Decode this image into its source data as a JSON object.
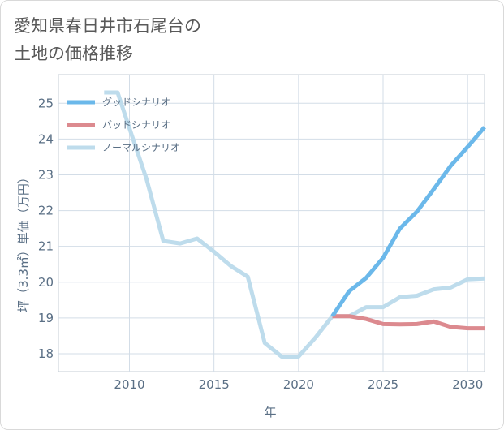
{
  "title": "愛知県春日井市石尾台の\n土地の価格推移",
  "chart_data": {
    "type": "line",
    "xlabel": "年",
    "ylabel": "坪（3.3㎡）単価（万円）",
    "xlim": [
      2005.8,
      2031
    ],
    "ylim": [
      17.5,
      25.8
    ],
    "xticks": [
      2010,
      2015,
      2020,
      2025,
      2030
    ],
    "yticks": [
      18,
      19,
      20,
      21,
      22,
      23,
      24,
      25
    ],
    "grid": true,
    "legend_position": "top-left",
    "series": [
      {
        "name": "グッドシナリオ",
        "color": "#6bb8ea",
        "x": [
          2022,
          2023,
          2024,
          2025,
          2026,
          2027,
          2028,
          2029,
          2030,
          2031
        ],
        "y": [
          19.05,
          19.75,
          20.12,
          20.68,
          21.5,
          21.97,
          22.6,
          23.25,
          23.78,
          24.33
        ]
      },
      {
        "name": "バッドシナリオ",
        "color": "#dc8a8f",
        "x": [
          2022,
          2023,
          2024,
          2025,
          2026,
          2027,
          2028,
          2029,
          2030,
          2031
        ],
        "y": [
          19.05,
          19.05,
          18.97,
          18.83,
          18.82,
          18.83,
          18.9,
          18.75,
          18.71,
          18.71
        ]
      },
      {
        "name": "ノーマルシナリオ",
        "color": "#bedcec",
        "x": [
          2008.5,
          2009.3,
          2010,
          2011,
          2012,
          2013,
          2014,
          2015,
          2016,
          2017,
          2018,
          2019,
          2020,
          2021,
          2022,
          2023,
          2024,
          2025,
          2026,
          2027,
          2028,
          2029,
          2030,
          2031
        ],
        "y": [
          25.3,
          25.3,
          24.3,
          22.9,
          21.15,
          21.08,
          21.22,
          20.85,
          20.45,
          20.15,
          18.3,
          17.92,
          17.92,
          18.45,
          19.05,
          19.05,
          19.3,
          19.3,
          19.58,
          19.62,
          19.8,
          19.85,
          20.08,
          20.1
        ]
      }
    ]
  }
}
